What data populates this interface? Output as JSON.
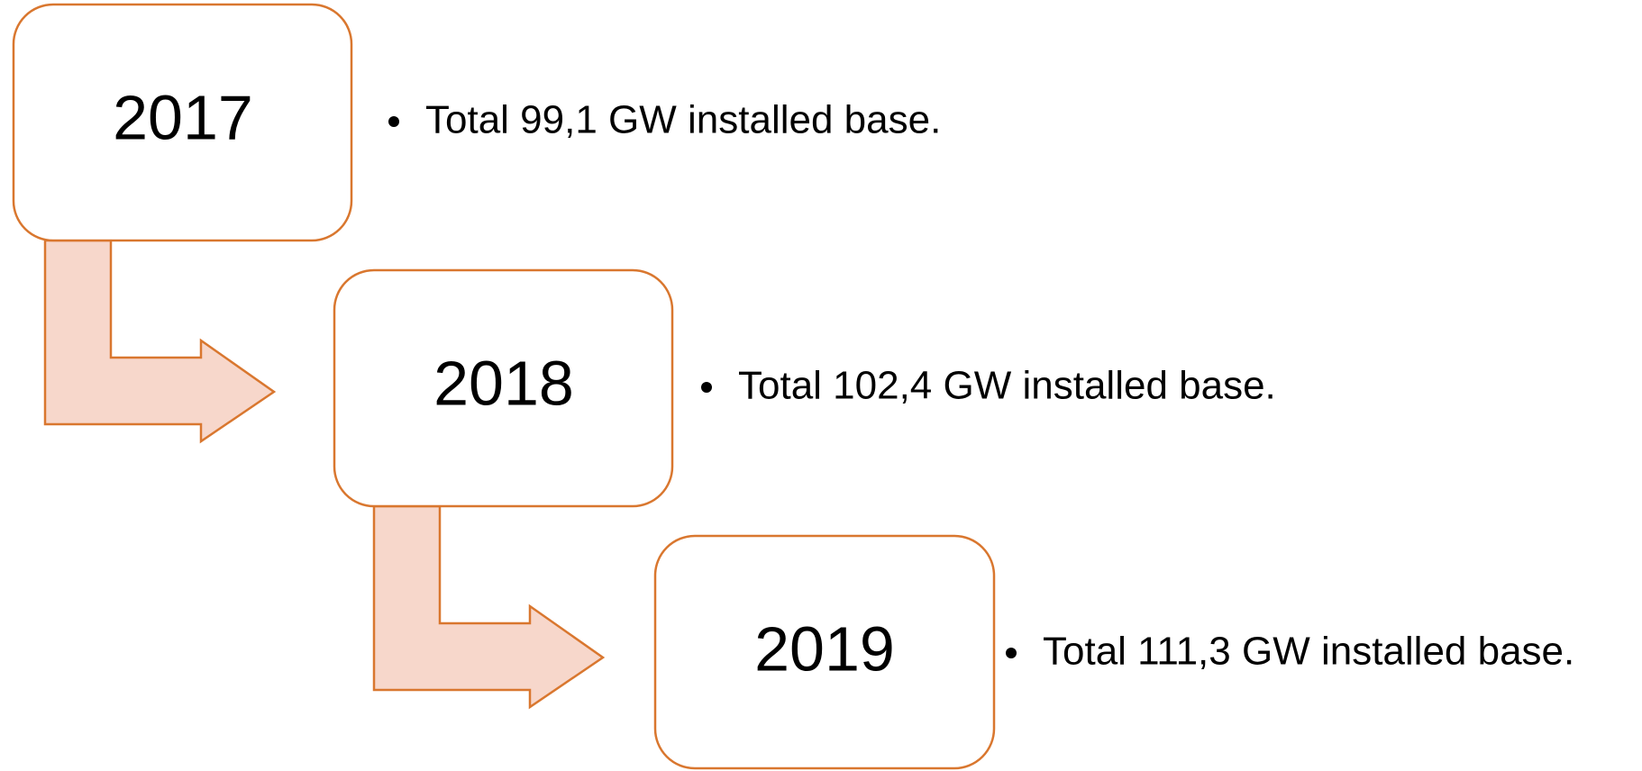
{
  "items": [
    {
      "year": "2017",
      "text": "Total 99,1 GW installed base."
    },
    {
      "year": "2018",
      "text": "Total 102,4 GW installed base."
    },
    {
      "year": "2019",
      "text": "Total 111,3 GW installed base."
    }
  ]
}
